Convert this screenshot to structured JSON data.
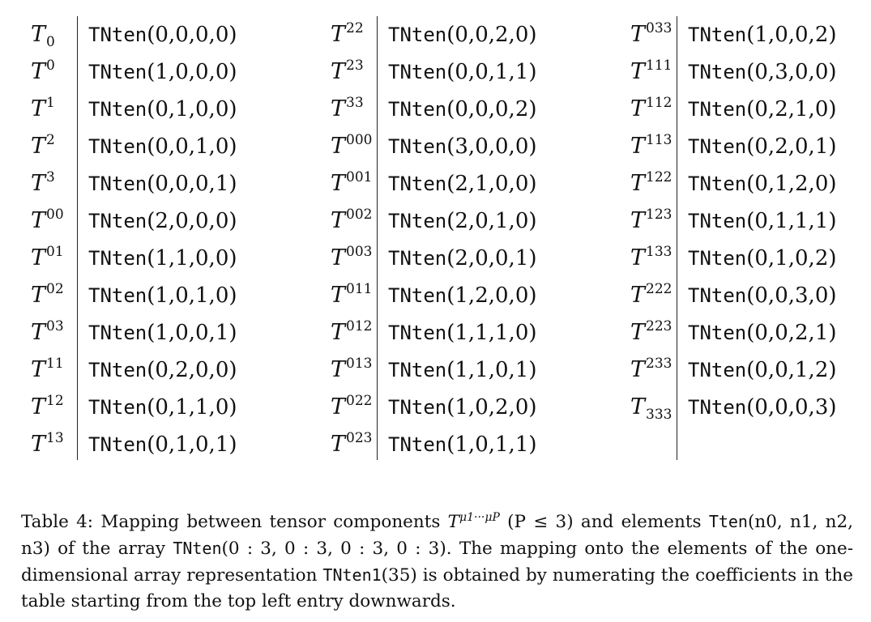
{
  "table": {
    "columns": [
      {
        "rows": [
          {
            "base": "T",
            "sub": "0",
            "sup": "",
            "fn": "TNten",
            "args": "(0,0,0,0)"
          },
          {
            "base": "T",
            "sub": "",
            "sup": "0",
            "fn": "TNten",
            "args": "(1,0,0,0)"
          },
          {
            "base": "T",
            "sub": "",
            "sup": "1",
            "fn": "TNten",
            "args": "(0,1,0,0)"
          },
          {
            "base": "T",
            "sub": "",
            "sup": "2",
            "fn": "TNten",
            "args": "(0,0,1,0)"
          },
          {
            "base": "T",
            "sub": "",
            "sup": "3",
            "fn": "TNten",
            "args": "(0,0,0,1)"
          },
          {
            "base": "T",
            "sub": "",
            "sup": "00",
            "fn": "TNten",
            "args": "(2,0,0,0)"
          },
          {
            "base": "T",
            "sub": "",
            "sup": "01",
            "fn": "TNten",
            "args": "(1,1,0,0)"
          },
          {
            "base": "T",
            "sub": "",
            "sup": "02",
            "fn": "TNten",
            "args": "(1,0,1,0)"
          },
          {
            "base": "T",
            "sub": "",
            "sup": "03",
            "fn": "TNten",
            "args": "(1,0,0,1)"
          },
          {
            "base": "T",
            "sub": "",
            "sup": "11",
            "fn": "TNten",
            "args": "(0,2,0,0)"
          },
          {
            "base": "T",
            "sub": "",
            "sup": "12",
            "fn": "TNten",
            "args": "(0,1,1,0)"
          },
          {
            "base": "T",
            "sub": "",
            "sup": "13",
            "fn": "TNten",
            "args": "(0,1,0,1)"
          }
        ]
      },
      {
        "rows": [
          {
            "base": "T",
            "sub": "",
            "sup": "22",
            "fn": "TNten",
            "args": "(0,0,2,0)"
          },
          {
            "base": "T",
            "sub": "",
            "sup": "23",
            "fn": "TNten",
            "args": "(0,0,1,1)"
          },
          {
            "base": "T",
            "sub": "",
            "sup": "33",
            "fn": "TNten",
            "args": "(0,0,0,2)"
          },
          {
            "base": "T",
            "sub": "",
            "sup": "000",
            "fn": "TNten",
            "args": "(3,0,0,0)"
          },
          {
            "base": "T",
            "sub": "",
            "sup": "001",
            "fn": "TNten",
            "args": "(2,1,0,0)"
          },
          {
            "base": "T",
            "sub": "",
            "sup": "002",
            "fn": "TNten",
            "args": "(2,0,1,0)"
          },
          {
            "base": "T",
            "sub": "",
            "sup": "003",
            "fn": "TNten",
            "args": "(2,0,0,1)"
          },
          {
            "base": "T",
            "sub": "",
            "sup": "011",
            "fn": "TNten",
            "args": "(1,2,0,0)"
          },
          {
            "base": "T",
            "sub": "",
            "sup": "012",
            "fn": "TNten",
            "args": "(1,1,1,0)"
          },
          {
            "base": "T",
            "sub": "",
            "sup": "013",
            "fn": "TNten",
            "args": "(1,1,0,1)"
          },
          {
            "base": "T",
            "sub": "",
            "sup": "022",
            "fn": "TNten",
            "args": "(1,0,2,0)"
          },
          {
            "base": "T",
            "sub": "",
            "sup": "023",
            "fn": "TNten",
            "args": "(1,0,1,1)"
          }
        ]
      },
      {
        "rows": [
          {
            "base": "T",
            "sub": "",
            "sup": "033",
            "fn": "TNten",
            "args": "(1,0,0,2)"
          },
          {
            "base": "T",
            "sub": "",
            "sup": "111",
            "fn": "TNten",
            "args": "(0,3,0,0)"
          },
          {
            "base": "T",
            "sub": "",
            "sup": "112",
            "fn": "TNten",
            "args": "(0,2,1,0)"
          },
          {
            "base": "T",
            "sub": "",
            "sup": "113",
            "fn": "TNten",
            "args": "(0,2,0,1)"
          },
          {
            "base": "T",
            "sub": "",
            "sup": "122",
            "fn": "TNten",
            "args": "(0,1,2,0)"
          },
          {
            "base": "T",
            "sub": "",
            "sup": "123",
            "fn": "TNten",
            "args": "(0,1,1,1)"
          },
          {
            "base": "T",
            "sub": "",
            "sup": "133",
            "fn": "TNten",
            "args": "(0,1,0,2)"
          },
          {
            "base": "T",
            "sub": "",
            "sup": "222",
            "fn": "TNten",
            "args": "(0,0,3,0)"
          },
          {
            "base": "T",
            "sub": "",
            "sup": "223",
            "fn": "TNten",
            "args": "(0,0,2,1)"
          },
          {
            "base": "T",
            "sub": "",
            "sup": "233",
            "fn": "TNten",
            "args": "(0,0,1,2)"
          },
          {
            "base": "T",
            "sub": "333",
            "sup": "",
            "fn": "TNten",
            "args": "(0,0,0,3)"
          }
        ]
      }
    ]
  },
  "caption": {
    "label": "Table 4:",
    "t1": "Mapping between tensor components",
    "sym_T": "T",
    "sym_sup": "μ1···μP",
    "cond": "(P ≤ 3)",
    "t2": "and elements",
    "tten_fn": "Tten",
    "tten_args": "(n0, n1, n2, n3)",
    "t3": "of the array",
    "tnten_fn": "TNten",
    "tnten_args": "(0 : 3, 0 : 3, 0 : 3, 0 : 3).",
    "t4": "The mapping onto the elements of the one-dimensional array representation",
    "tnten1_fn": "TNten1",
    "tnten1_args": "(35)",
    "t5": "is obtained by numerating the coefficients in the table starting from the top left entry downwards."
  }
}
